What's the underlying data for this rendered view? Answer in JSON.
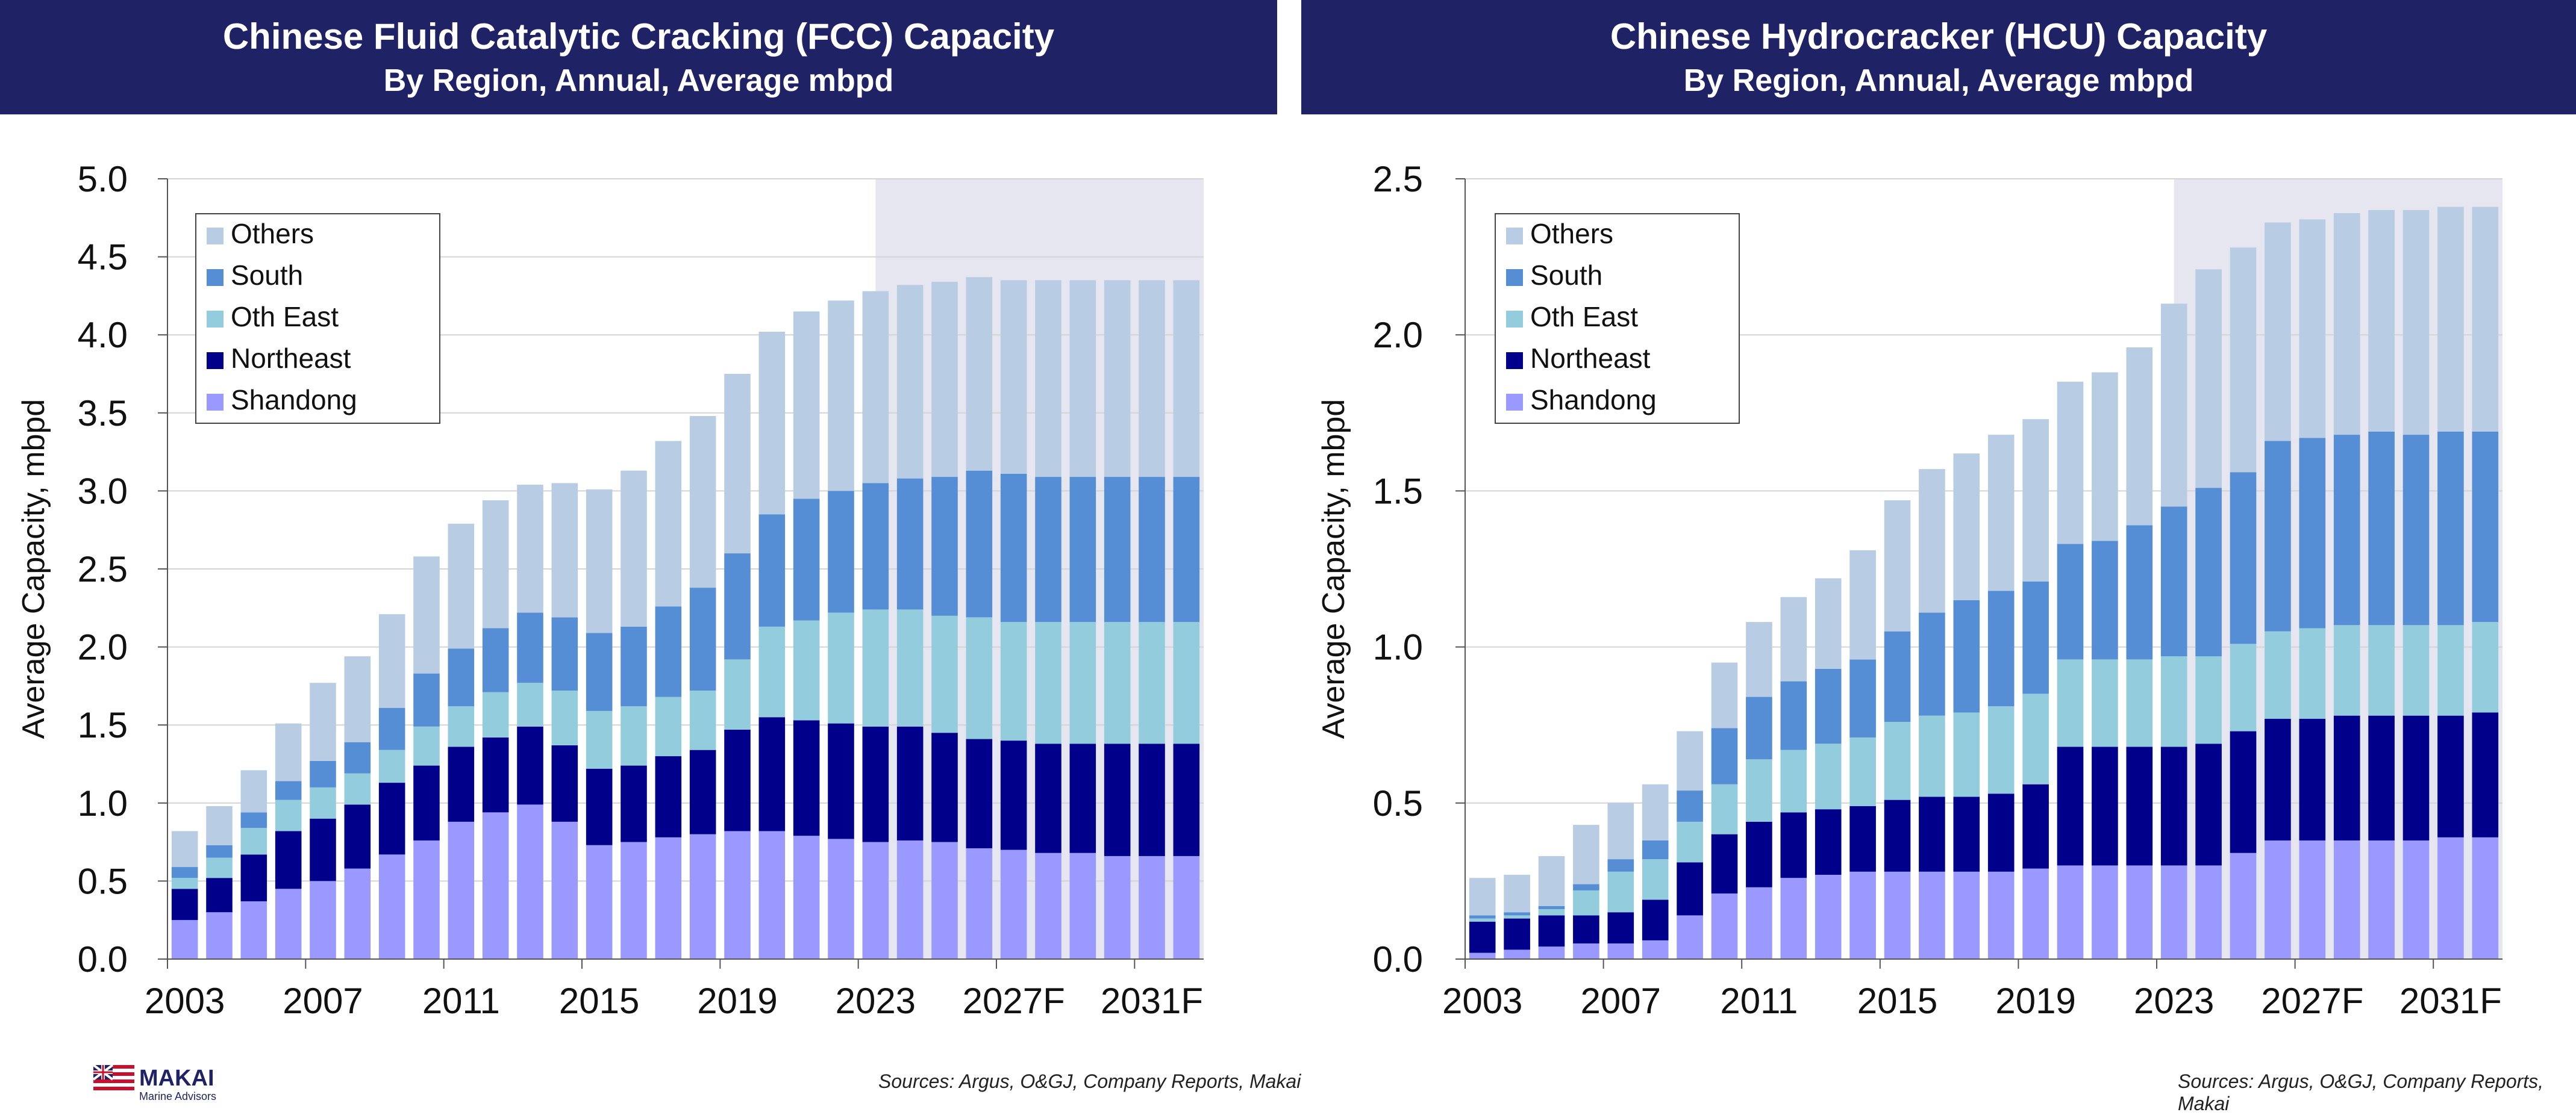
{
  "charts": [
    {
      "title": "Chinese Fluid Catalytic Cracking (FCC) Capacity",
      "subtitle": "By Region, Annual, Average mbpd",
      "source": "Sources: Argus, O&GJ, Company Reports, Makai"
    },
    {
      "title": "Chinese Hydrocracker (HCU) Capacity",
      "subtitle": "By Region, Annual, Average mbpd",
      "source": "Sources: Argus, O&GJ, Company Reports, Makai"
    }
  ],
  "logo": {
    "name": "MAKAI",
    "tagline": "Marine Advisors"
  },
  "colors": {
    "header": "#1f2366",
    "Others": "#b8cce4",
    "South": "#558ed5",
    "Oth East": "#93cddd",
    "Northeast": "#00008b",
    "Shandong": "#9999ff",
    "forecast_shade": "#e6e6f0"
  },
  "chart_data": [
    {
      "type": "bar",
      "stacked": true,
      "categories": [
        "2003",
        "2004",
        "2005",
        "2006",
        "2007",
        "2008",
        "2009",
        "2010",
        "2011",
        "2012",
        "2013",
        "2014",
        "2015",
        "2016",
        "2017",
        "2018",
        "2019",
        "2020",
        "2021",
        "2022",
        "2023",
        "2024",
        "2025",
        "2026",
        "2027F",
        "2028",
        "2029",
        "2030",
        "2031F",
        "2032"
      ],
      "x_tick_labels": [
        "2003",
        "2007",
        "2011",
        "2015",
        "2019",
        "2023",
        "2027F",
        "2031F"
      ],
      "ylabel": "Average Capacity, mbpd",
      "ylim": [
        0,
        5.0
      ],
      "yticks": [
        "0.0",
        "0.5",
        "1.0",
        "1.5",
        "2.0",
        "2.5",
        "3.0",
        "3.5",
        "4.0",
        "4.5",
        "5.0"
      ],
      "grid": true,
      "legend_position": "top-left",
      "forecast_shaded_from": "2024",
      "series": [
        {
          "name": "Shandong",
          "values": [
            0.25,
            0.3,
            0.37,
            0.45,
            0.5,
            0.58,
            0.67,
            0.76,
            0.88,
            0.94,
            0.99,
            0.88,
            0.73,
            0.75,
            0.78,
            0.8,
            0.82,
            0.82,
            0.79,
            0.77,
            0.75,
            0.76,
            0.75,
            0.71,
            0.7,
            0.68,
            0.68,
            0.66,
            0.66,
            0.66
          ]
        },
        {
          "name": "Northeast",
          "values": [
            0.2,
            0.22,
            0.3,
            0.37,
            0.4,
            0.41,
            0.46,
            0.48,
            0.48,
            0.48,
            0.5,
            0.49,
            0.49,
            0.49,
            0.52,
            0.54,
            0.65,
            0.73,
            0.74,
            0.74,
            0.74,
            0.73,
            0.7,
            0.7,
            0.7,
            0.7,
            0.7,
            0.72,
            0.72,
            0.72
          ]
        },
        {
          "name": "Oth East",
          "values": [
            0.07,
            0.13,
            0.17,
            0.2,
            0.2,
            0.2,
            0.21,
            0.25,
            0.26,
            0.29,
            0.28,
            0.35,
            0.37,
            0.38,
            0.38,
            0.38,
            0.45,
            0.58,
            0.64,
            0.71,
            0.75,
            0.75,
            0.75,
            0.78,
            0.76,
            0.78,
            0.78,
            0.78,
            0.78,
            0.78
          ]
        },
        {
          "name": "South",
          "values": [
            0.07,
            0.08,
            0.1,
            0.12,
            0.17,
            0.2,
            0.27,
            0.34,
            0.37,
            0.41,
            0.45,
            0.47,
            0.5,
            0.51,
            0.58,
            0.66,
            0.68,
            0.72,
            0.78,
            0.78,
            0.81,
            0.84,
            0.89,
            0.94,
            0.95,
            0.93,
            0.93,
            0.93,
            0.93,
            0.93
          ]
        },
        {
          "name": "Others",
          "values": [
            0.23,
            0.25,
            0.27,
            0.37,
            0.5,
            0.55,
            0.6,
            0.75,
            0.8,
            0.82,
            0.82,
            0.86,
            0.92,
            1.0,
            1.06,
            1.1,
            1.15,
            1.17,
            1.2,
            1.22,
            1.23,
            1.24,
            1.25,
            1.24,
            1.24,
            1.26,
            1.26,
            1.26,
            1.26,
            1.26
          ]
        }
      ]
    },
    {
      "type": "bar",
      "stacked": true,
      "categories": [
        "2003",
        "2004",
        "2005",
        "2006",
        "2007",
        "2008",
        "2009",
        "2010",
        "2011",
        "2012",
        "2013",
        "2014",
        "2015",
        "2016",
        "2017",
        "2018",
        "2019",
        "2020",
        "2021",
        "2022",
        "2023",
        "2024",
        "2025",
        "2026",
        "2027F",
        "2028",
        "2029",
        "2030",
        "2031F",
        "2032"
      ],
      "x_tick_labels": [
        "2003",
        "2007",
        "2011",
        "2015",
        "2019",
        "2023",
        "2027F",
        "2031F"
      ],
      "ylabel": "Average Capacity, mbpd",
      "ylim": [
        0,
        2.5
      ],
      "yticks": [
        "0.0",
        "0.5",
        "1.0",
        "1.5",
        "2.0",
        "2.5"
      ],
      "grid": true,
      "legend_position": "top-left",
      "forecast_shaded_from": "2024",
      "series": [
        {
          "name": "Shandong",
          "values": [
            0.02,
            0.03,
            0.04,
            0.05,
            0.05,
            0.06,
            0.14,
            0.21,
            0.23,
            0.26,
            0.27,
            0.28,
            0.28,
            0.28,
            0.28,
            0.28,
            0.29,
            0.3,
            0.3,
            0.3,
            0.3,
            0.3,
            0.34,
            0.38,
            0.38,
            0.38,
            0.38,
            0.38,
            0.39,
            0.39
          ]
        },
        {
          "name": "Northeast",
          "values": [
            0.1,
            0.1,
            0.1,
            0.09,
            0.1,
            0.13,
            0.17,
            0.19,
            0.21,
            0.21,
            0.21,
            0.21,
            0.23,
            0.24,
            0.24,
            0.25,
            0.27,
            0.38,
            0.38,
            0.38,
            0.38,
            0.39,
            0.39,
            0.39,
            0.39,
            0.4,
            0.4,
            0.4,
            0.39,
            0.4
          ]
        },
        {
          "name": "Oth East",
          "values": [
            0.01,
            0.01,
            0.02,
            0.08,
            0.13,
            0.13,
            0.13,
            0.16,
            0.2,
            0.2,
            0.21,
            0.22,
            0.25,
            0.26,
            0.27,
            0.28,
            0.29,
            0.28,
            0.28,
            0.28,
            0.29,
            0.28,
            0.28,
            0.28,
            0.29,
            0.29,
            0.29,
            0.29,
            0.29,
            0.29
          ]
        },
        {
          "name": "South",
          "values": [
            0.01,
            0.01,
            0.01,
            0.02,
            0.04,
            0.06,
            0.1,
            0.18,
            0.2,
            0.22,
            0.24,
            0.25,
            0.29,
            0.33,
            0.36,
            0.37,
            0.36,
            0.37,
            0.38,
            0.43,
            0.48,
            0.54,
            0.55,
            0.61,
            0.61,
            0.61,
            0.62,
            0.61,
            0.62,
            0.61
          ]
        },
        {
          "name": "Others",
          "values": [
            0.12,
            0.12,
            0.16,
            0.19,
            0.18,
            0.18,
            0.19,
            0.21,
            0.24,
            0.27,
            0.29,
            0.35,
            0.42,
            0.46,
            0.47,
            0.5,
            0.52,
            0.52,
            0.54,
            0.57,
            0.65,
            0.7,
            0.72,
            0.7,
            0.7,
            0.71,
            0.71,
            0.72,
            0.72,
            0.72
          ]
        }
      ]
    }
  ]
}
